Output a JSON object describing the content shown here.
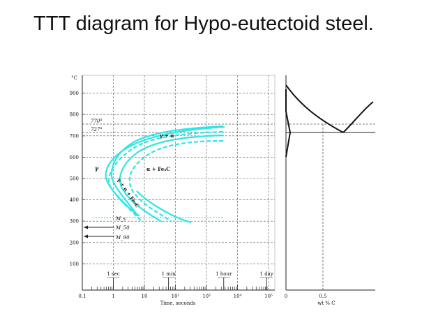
{
  "title": "TTT diagram for Hypo-eutectoid steel.",
  "colors": {
    "curve": "#2ee6e6",
    "axis": "#222222",
    "grid": "#555555",
    "frame": "#c8c8c8"
  },
  "ttt_chart": {
    "y_unit": "°C",
    "y_ticks": [
      "100",
      "200",
      "300",
      "400",
      "500",
      "600",
      "700",
      "800",
      "900"
    ],
    "x_ticks": [
      "0.1",
      "1",
      "10",
      "10²",
      "10³",
      "10⁴",
      "10⁵"
    ],
    "x_label": "Time, seconds",
    "time_marks": [
      "1 sec",
      "1 min",
      "1 hour",
      "1 day"
    ],
    "temp_labels": [
      "770°",
      "727°"
    ],
    "martensite_labels": [
      "M_s",
      "M_50",
      "M_90"
    ],
    "region_labels": {
      "austenite": "γ",
      "gamma_alpha": "γ + α",
      "alpha_carbide": "α + Fe₃C",
      "gamma_alpha_carbide": "γ + α + Fe₃C"
    }
  },
  "phase_chart": {
    "x_ticks": [
      "0",
      "0.5"
    ],
    "x_label": "wt % C"
  }
}
